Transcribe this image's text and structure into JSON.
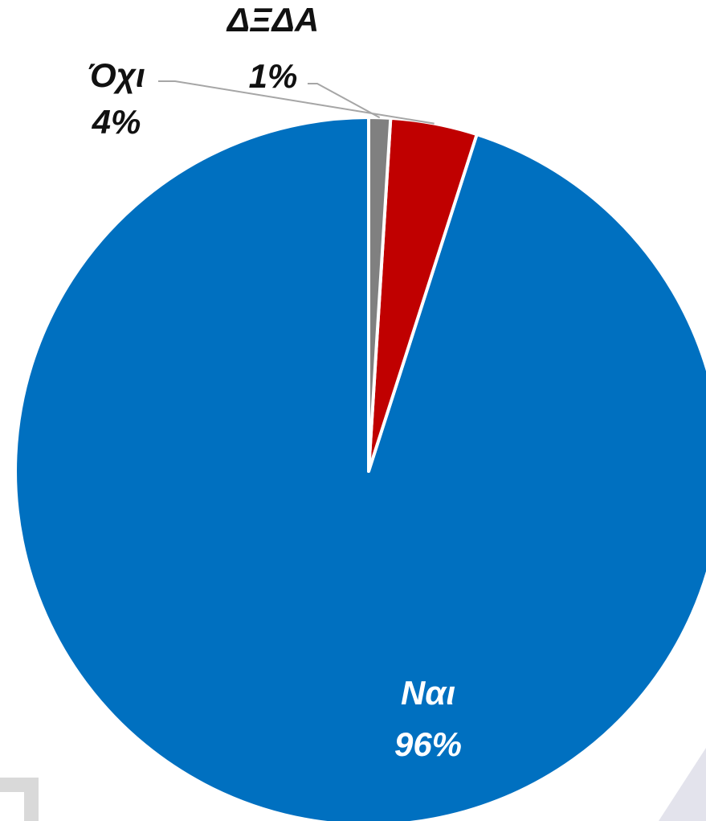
{
  "chart_data": {
    "type": "pie",
    "slices": [
      {
        "label": "Ναι",
        "value": 96,
        "value_label": "96%",
        "color": "#0070C0"
      },
      {
        "label": "Όχι",
        "value": 4,
        "value_label": "4%",
        "color": "#C00000"
      },
      {
        "label": "ΔΞΔΑ",
        "value": 1,
        "value_label": "1%",
        "color": "#808080"
      }
    ],
    "start_angle": "12 o'clock",
    "direction": "counter-clockwise",
    "legend": "none",
    "data_labels": "category and percent"
  }
}
